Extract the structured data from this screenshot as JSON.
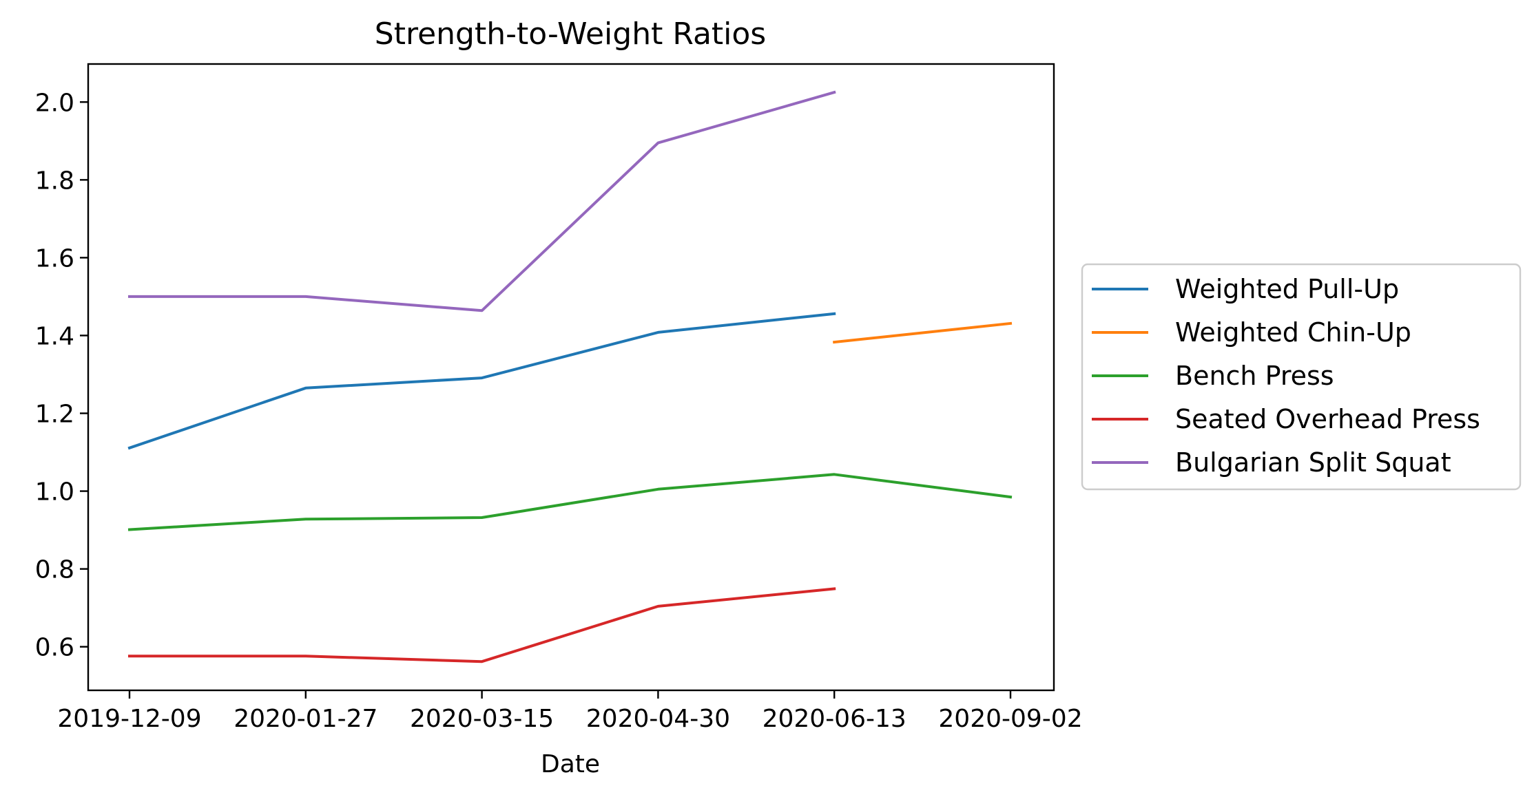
{
  "chart_data": {
    "type": "line",
    "title": "Strength-to-Weight Ratios",
    "xlabel": "Date",
    "ylabel": "",
    "categories": [
      "2019-12-09",
      "2020-01-27",
      "2020-03-15",
      "2020-04-30",
      "2020-06-13",
      "2020-09-02"
    ],
    "ylim": [
      0.49,
      2.1
    ],
    "yticks": [
      "0.6",
      "0.8",
      "1.0",
      "1.2",
      "1.4",
      "1.6",
      "1.8",
      "2.0"
    ],
    "grid": false,
    "legend_position": "right",
    "series": [
      {
        "name": "Weighted Pull-Up",
        "color": "#1f77b4",
        "values": [
          1.111,
          1.265,
          1.291,
          1.408,
          1.456,
          null
        ]
      },
      {
        "name": "Weighted Chin-Up",
        "color": "#ff7f0e",
        "values": [
          null,
          null,
          null,
          null,
          1.383,
          1.431
        ]
      },
      {
        "name": "Bench Press",
        "color": "#2ca02c",
        "values": [
          0.901,
          0.928,
          0.932,
          1.005,
          1.043,
          0.985
        ]
      },
      {
        "name": "Seated Overhead Press",
        "color": "#d62728",
        "values": [
          0.576,
          0.576,
          0.562,
          0.704,
          0.749,
          null
        ]
      },
      {
        "name": "Bulgarian Split Squat",
        "color": "#9467bd",
        "values": [
          1.5,
          1.5,
          1.464,
          1.895,
          2.025,
          null
        ]
      }
    ]
  }
}
